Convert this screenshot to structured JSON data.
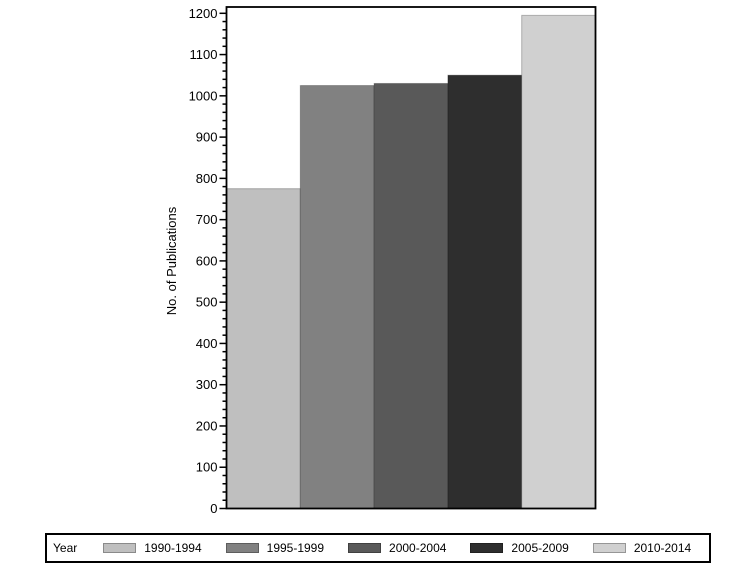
{
  "chart_data": {
    "type": "bar",
    "title": "",
    "xlabel": "",
    "ylabel": "No. of Publications",
    "legend_title": "Year",
    "legend_position": "bottom",
    "categories": [
      "1990-1994",
      "1995-1999",
      "2000-2004",
      "2005-2009",
      "2010-2014"
    ],
    "values": [
      775,
      1025,
      1030,
      1050,
      1195
    ],
    "bar_colors": [
      "#bfbfbf",
      "#818181",
      "#595959",
      "#2e2e2e",
      "#d0d0d0"
    ],
    "ylim": [
      0,
      1200
    ],
    "y_major_tick_step": 100,
    "y_minor_tick_step": 20,
    "y_tick_labels": [
      "0",
      "100",
      "200",
      "300",
      "400",
      "500",
      "600",
      "700",
      "800",
      "900",
      "1000",
      "1100",
      "1200"
    ],
    "grid": false,
    "frame_color": "#000000",
    "text_color": "#000000",
    "background_color": "#ffffff"
  }
}
